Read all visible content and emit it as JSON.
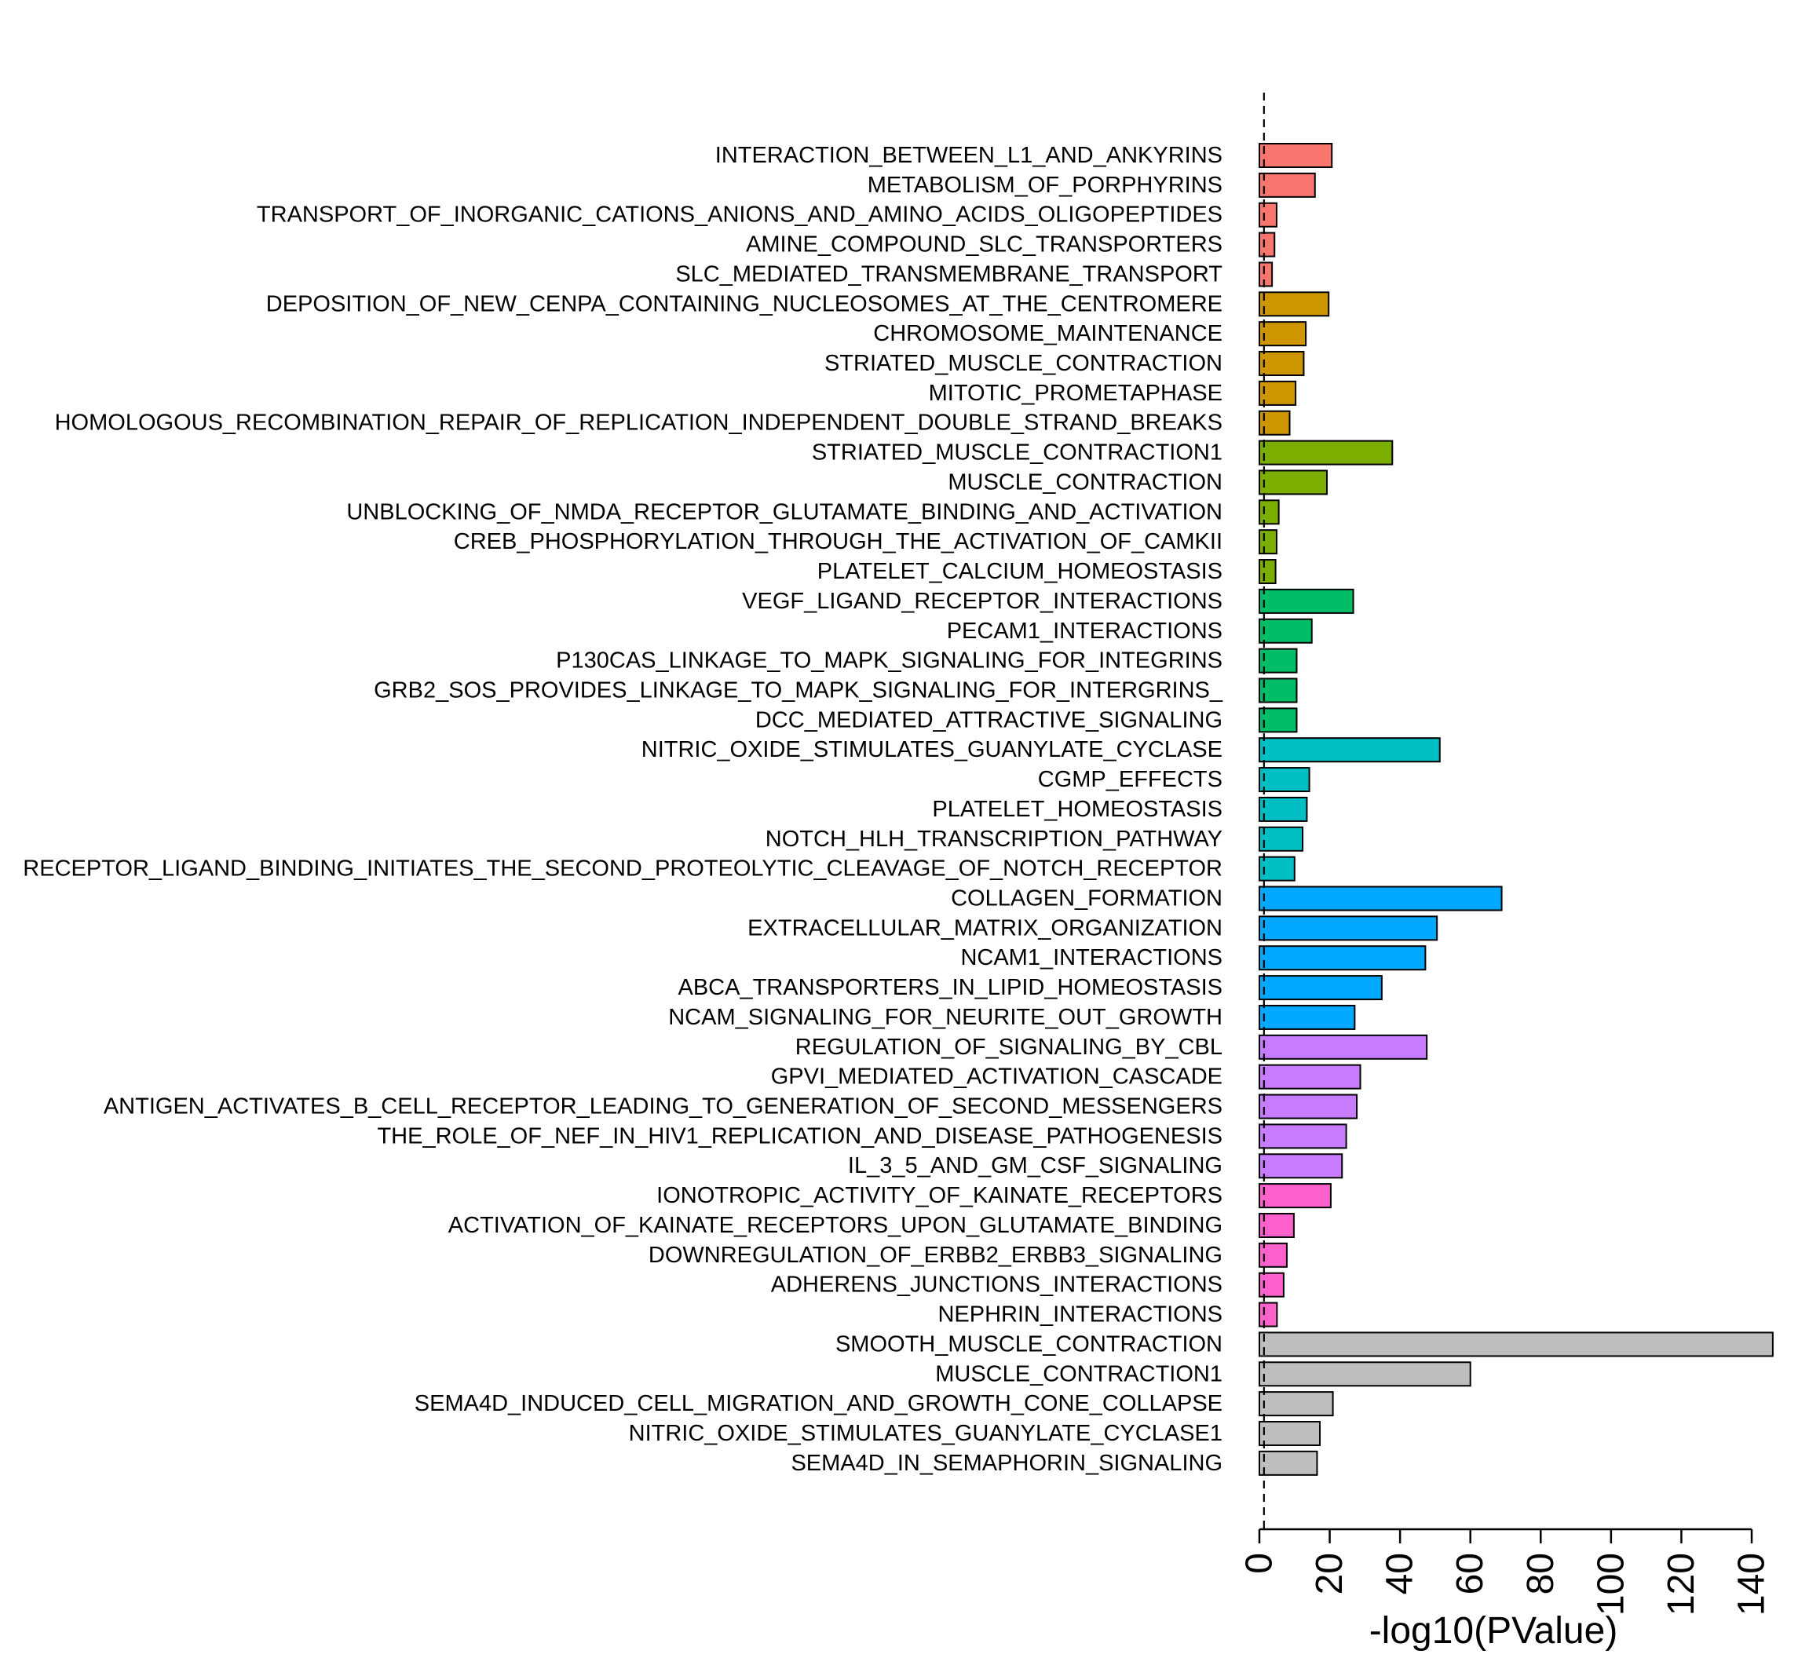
{
  "chart_data": {
    "type": "bar",
    "orientation": "horizontal",
    "title": "",
    "xlabel": "-log10(PValue)",
    "ylabel": "",
    "xlim": [
      0,
      145
    ],
    "xticks": [
      0,
      20,
      40,
      60,
      80,
      100,
      120,
      140
    ],
    "reference_line": 1.3,
    "categories": [
      "INTERACTION_BETWEEN_L1_AND_ANKYRINS",
      "METABOLISM_OF_PORPHYRINS",
      "TRANSPORT_OF_INORGANIC_CATIONS_ANIONS_AND_AMINO_ACIDS_OLIGOPEPTIDES",
      "AMINE_COMPOUND_SLC_TRANSPORTERS",
      "SLC_MEDIATED_TRANSMEMBRANE_TRANSPORT",
      "DEPOSITION_OF_NEW_CENPA_CONTAINING_NUCLEOSOMES_AT_THE_CENTROMERE",
      "CHROMOSOME_MAINTENANCE",
      "STRIATED_MUSCLE_CONTRACTION",
      "MITOTIC_PROMETAPHASE",
      "HOMOLOGOUS_RECOMBINATION_REPAIR_OF_REPLICATION_INDEPENDENT_DOUBLE_STRAND_BREAKS",
      "STRIATED_MUSCLE_CONTRACTION1",
      "MUSCLE_CONTRACTION",
      "UNBLOCKING_OF_NMDA_RECEPTOR_GLUTAMATE_BINDING_AND_ACTIVATION",
      "CREB_PHOSPHORYLATION_THROUGH_THE_ACTIVATION_OF_CAMKII",
      "PLATELET_CALCIUM_HOMEOSTASIS",
      "VEGF_LIGAND_RECEPTOR_INTERACTIONS",
      "PECAM1_INTERACTIONS",
      "P130CAS_LINKAGE_TO_MAPK_SIGNALING_FOR_INTEGRINS",
      "GRB2_SOS_PROVIDES_LINKAGE_TO_MAPK_SIGNALING_FOR_INTERGRINS_",
      "DCC_MEDIATED_ATTRACTIVE_SIGNALING",
      "NITRIC_OXIDE_STIMULATES_GUANYLATE_CYCLASE",
      "CGMP_EFFECTS",
      "PLATELET_HOMEOSTASIS",
      "NOTCH_HLH_TRANSCRIPTION_PATHWAY",
      "RECEPTOR_LIGAND_BINDING_INITIATES_THE_SECOND_PROTEOLYTIC_CLEAVAGE_OF_NOTCH_RECEPTOR",
      "COLLAGEN_FORMATION",
      "EXTRACELLULAR_MATRIX_ORGANIZATION",
      "NCAM1_INTERACTIONS",
      "ABCA_TRANSPORTERS_IN_LIPID_HOMEOSTASIS",
      "NCAM_SIGNALING_FOR_NEURITE_OUT_GROWTH",
      "REGULATION_OF_SIGNALING_BY_CBL",
      "GPVI_MEDIATED_ACTIVATION_CASCADE",
      "ANTIGEN_ACTIVATES_B_CELL_RECEPTOR_LEADING_TO_GENERATION_OF_SECOND_MESSENGERS",
      "THE_ROLE_OF_NEF_IN_HIV1_REPLICATION_AND_DISEASE_PATHOGENESIS",
      "IL_3_5_AND_GM_CSF_SIGNALING",
      "IONOTROPIC_ACTIVITY_OF_KAINATE_RECEPTORS",
      "ACTIVATION_OF_KAINATE_RECEPTORS_UPON_GLUTAMATE_BINDING",
      "DOWNREGULATION_OF_ERBB2_ERBB3_SIGNALING",
      "ADHERENS_JUNCTIONS_INTERACTIONS",
      "NEPHRIN_INTERACTIONS",
      "SMOOTH_MUSCLE_CONTRACTION",
      "MUSCLE_CONTRACTION1",
      "SEMA4D_INDUCED_CELL_MIGRATION_AND_GROWTH_CONE_COLLAPSE",
      "NITRIC_OXIDE_STIMULATES_GUANYLATE_CYCLASE1",
      "SEMA4D_IN_SEMAPHORIN_SIGNALING"
    ],
    "values": [
      20.6,
      15.8,
      4.9,
      4.3,
      3.6,
      19.7,
      13.2,
      12.6,
      10.3,
      8.6,
      37.8,
      19.2,
      5.5,
      4.9,
      4.6,
      26.7,
      14.9,
      10.6,
      10.6,
      10.6,
      51.3,
      14.2,
      13.5,
      12.3,
      10.0,
      68.9,
      50.5,
      47.2,
      34.8,
      27.1,
      47.6,
      28.7,
      27.7,
      24.7,
      23.5,
      20.3,
      9.8,
      7.8,
      6.9,
      5.0,
      146.0,
      60.0,
      20.9,
      17.2,
      16.4
    ],
    "groups": [
      0,
      0,
      0,
      0,
      0,
      1,
      1,
      1,
      1,
      1,
      2,
      2,
      2,
      2,
      2,
      3,
      3,
      3,
      3,
      3,
      4,
      4,
      4,
      4,
      4,
      5,
      5,
      5,
      5,
      5,
      6,
      6,
      6,
      6,
      6,
      7,
      7,
      7,
      7,
      7,
      8,
      8,
      8,
      8,
      8
    ],
    "group_colors": [
      "#F8766D",
      "#CD9600",
      "#7CAE00",
      "#00BE67",
      "#00BFC4",
      "#00A9FF",
      "#C77CFF",
      "#FF61CC",
      "#BEBEBE"
    ]
  }
}
